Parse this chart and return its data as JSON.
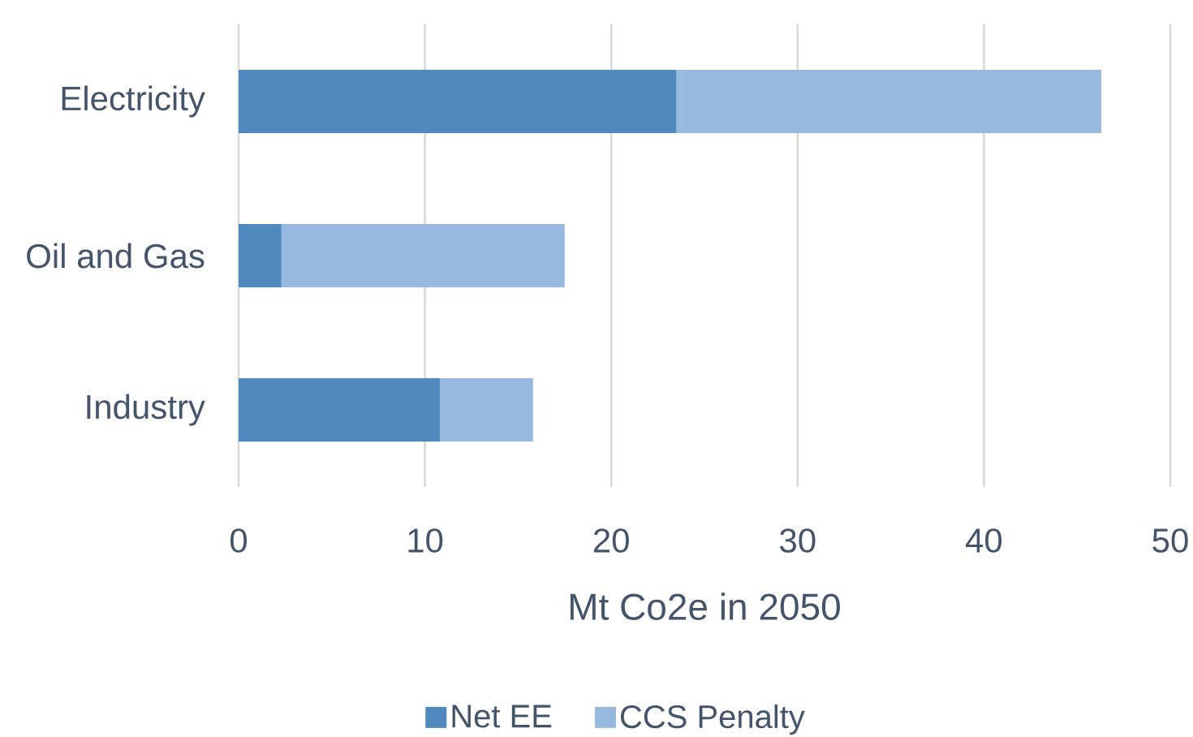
{
  "chart_data": {
    "type": "bar",
    "orientation": "horizontal",
    "stacked": true,
    "categories": [
      "Electricity",
      "Oil and Gas",
      "Industry"
    ],
    "series": [
      {
        "name": "Net EE",
        "color": "#4f89bd",
        "values": [
          23.5,
          2.3,
          10.8
        ]
      },
      {
        "name": "CCS Penalty",
        "color": "#98b9df",
        "values": [
          22.8,
          15.2,
          5.0
        ]
      }
    ],
    "xlabel": "Mt Co2e in 2050",
    "xlim": [
      0,
      50
    ],
    "xticks": [
      0,
      10,
      20,
      30,
      40,
      50
    ],
    "grid": "x",
    "legend": "bottom"
  }
}
